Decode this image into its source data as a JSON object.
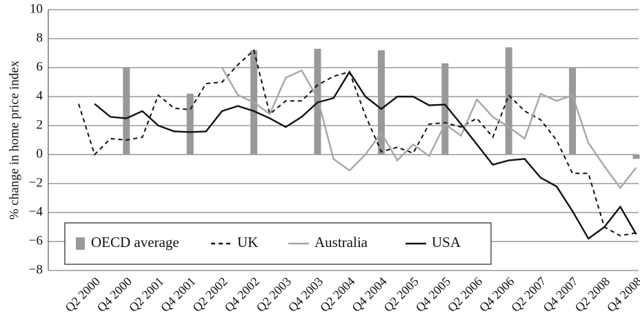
{
  "chart_data": {
    "type": "line",
    "y_label": "% change in home price index",
    "categories": [
      null,
      "Q2 2000",
      null,
      "Q4 2000",
      null,
      "Q2 2001",
      null,
      "Q4 2001",
      null,
      "Q2 2002",
      null,
      "Q4 2002",
      null,
      "Q2 2003",
      null,
      "Q4 2003",
      null,
      "Q2 2004",
      null,
      "Q4 2004",
      null,
      "Q2 2005",
      null,
      "Q4 2005",
      null,
      "Q2 2006",
      null,
      "Q4 2006",
      null,
      "Q2 2007",
      null,
      "Q4 2007",
      null,
      "Q2 2008",
      null,
      "Q4 2008"
    ],
    "series": [
      {
        "name": "OECD average",
        "type": "bar",
        "color": "#999999",
        "values": [
          null,
          null,
          null,
          6.0,
          null,
          null,
          null,
          4.2,
          null,
          null,
          null,
          7.2,
          null,
          null,
          null,
          7.3,
          null,
          null,
          null,
          7.2,
          null,
          null,
          null,
          6.3,
          null,
          null,
          null,
          7.4,
          null,
          null,
          null,
          6.0,
          null,
          null,
          null,
          -0.3
        ]
      },
      {
        "name": "UK",
        "type": "line",
        "color": "#111111",
        "dash": "dashed",
        "values": [
          3.5,
          0.0,
          1.1,
          1.0,
          1.2,
          4.1,
          3.2,
          3.1,
          4.9,
          5.0,
          6.2,
          7.2,
          2.8,
          3.7,
          3.7,
          4.8,
          5.4,
          5.7,
          2.7,
          0.2,
          0.5,
          0.1,
          2.1,
          2.2,
          1.9,
          2.5,
          1.2,
          4.1,
          3.0,
          2.4,
          1.0,
          -1.3,
          -1.3,
          -5.0,
          -5.6,
          -5.4
        ]
      },
      {
        "name": "Australia",
        "type": "line",
        "color": "#a6a6a6",
        "values": [
          null,
          null,
          null,
          null,
          null,
          null,
          null,
          null,
          null,
          6.0,
          4.1,
          3.6,
          2.8,
          5.3,
          5.8,
          3.9,
          -0.3,
          -1.1,
          0.0,
          1.5,
          -0.4,
          0.7,
          -0.1,
          2.1,
          1.3,
          3.8,
          2.6,
          1.9,
          1.1,
          4.2,
          3.7,
          4.1,
          0.8,
          -0.8,
          -2.3,
          -0.9
        ]
      },
      {
        "name": "USA",
        "type": "line",
        "color": "#111111",
        "values": [
          null,
          3.5,
          2.6,
          2.5,
          3.0,
          2.0,
          1.6,
          1.55,
          1.6,
          3.0,
          3.35,
          3.0,
          2.5,
          1.9,
          2.6,
          3.6,
          3.9,
          5.7,
          4.0,
          3.15,
          4.0,
          4.0,
          3.4,
          3.45,
          2.1,
          0.7,
          -0.7,
          -0.4,
          -0.3,
          -1.6,
          -2.2,
          -3.9,
          -5.8,
          -5.0,
          -3.6,
          -5.5
        ]
      }
    ],
    "ylim": [
      -8,
      10
    ],
    "yticks": [
      {
        "value": -8,
        "label": "−8"
      },
      {
        "value": -6,
        "label": "−6"
      },
      {
        "value": -4,
        "label": "−4"
      },
      {
        "value": -2,
        "label": "−2"
      },
      0,
      2,
      4,
      6,
      8,
      10
    ],
    "grid": true,
    "legend": "lower left"
  }
}
